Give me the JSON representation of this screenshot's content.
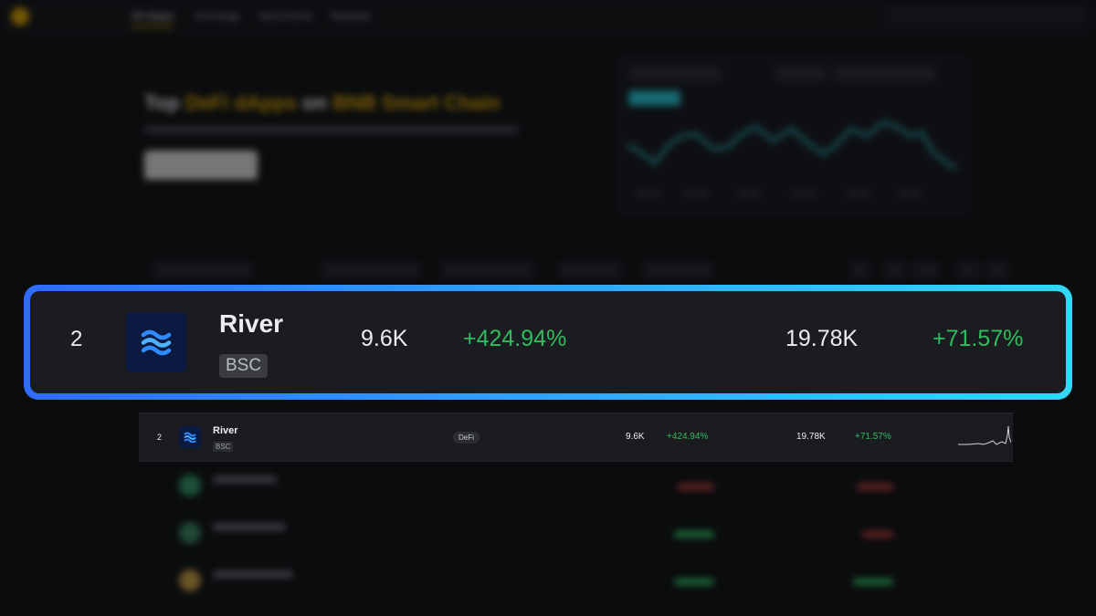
{
  "header": {
    "nav": [
      "All dApps",
      "Exchange",
      "Best Events",
      "Rewards"
    ]
  },
  "hero": {
    "title_prefix": "Top",
    "title_highlight_1": "DeFi dApps",
    "title_middle": "on",
    "title_highlight_2": "BNB Smart Chain"
  },
  "highlight_row": {
    "rank": "2",
    "name": "River",
    "chain": "BSC",
    "users": "9.6K",
    "users_change": "+424.94%",
    "transactions": "19.78K",
    "transactions_change": "+71.57%"
  },
  "table": {
    "rows": [
      {
        "rank": "2",
        "name": "River",
        "chain": "BSC",
        "category": "DeFi",
        "users": "9.6K",
        "users_change": "+424.94%",
        "transactions": "19.78K",
        "transactions_change": "+71.57%"
      }
    ]
  },
  "colors": {
    "positive": "#2ebd5f",
    "brand": "#d9a400",
    "accent_start": "#2f6bff",
    "accent_end": "#31d8f5"
  },
  "icons": {
    "project_logo": "river-wave-icon"
  }
}
